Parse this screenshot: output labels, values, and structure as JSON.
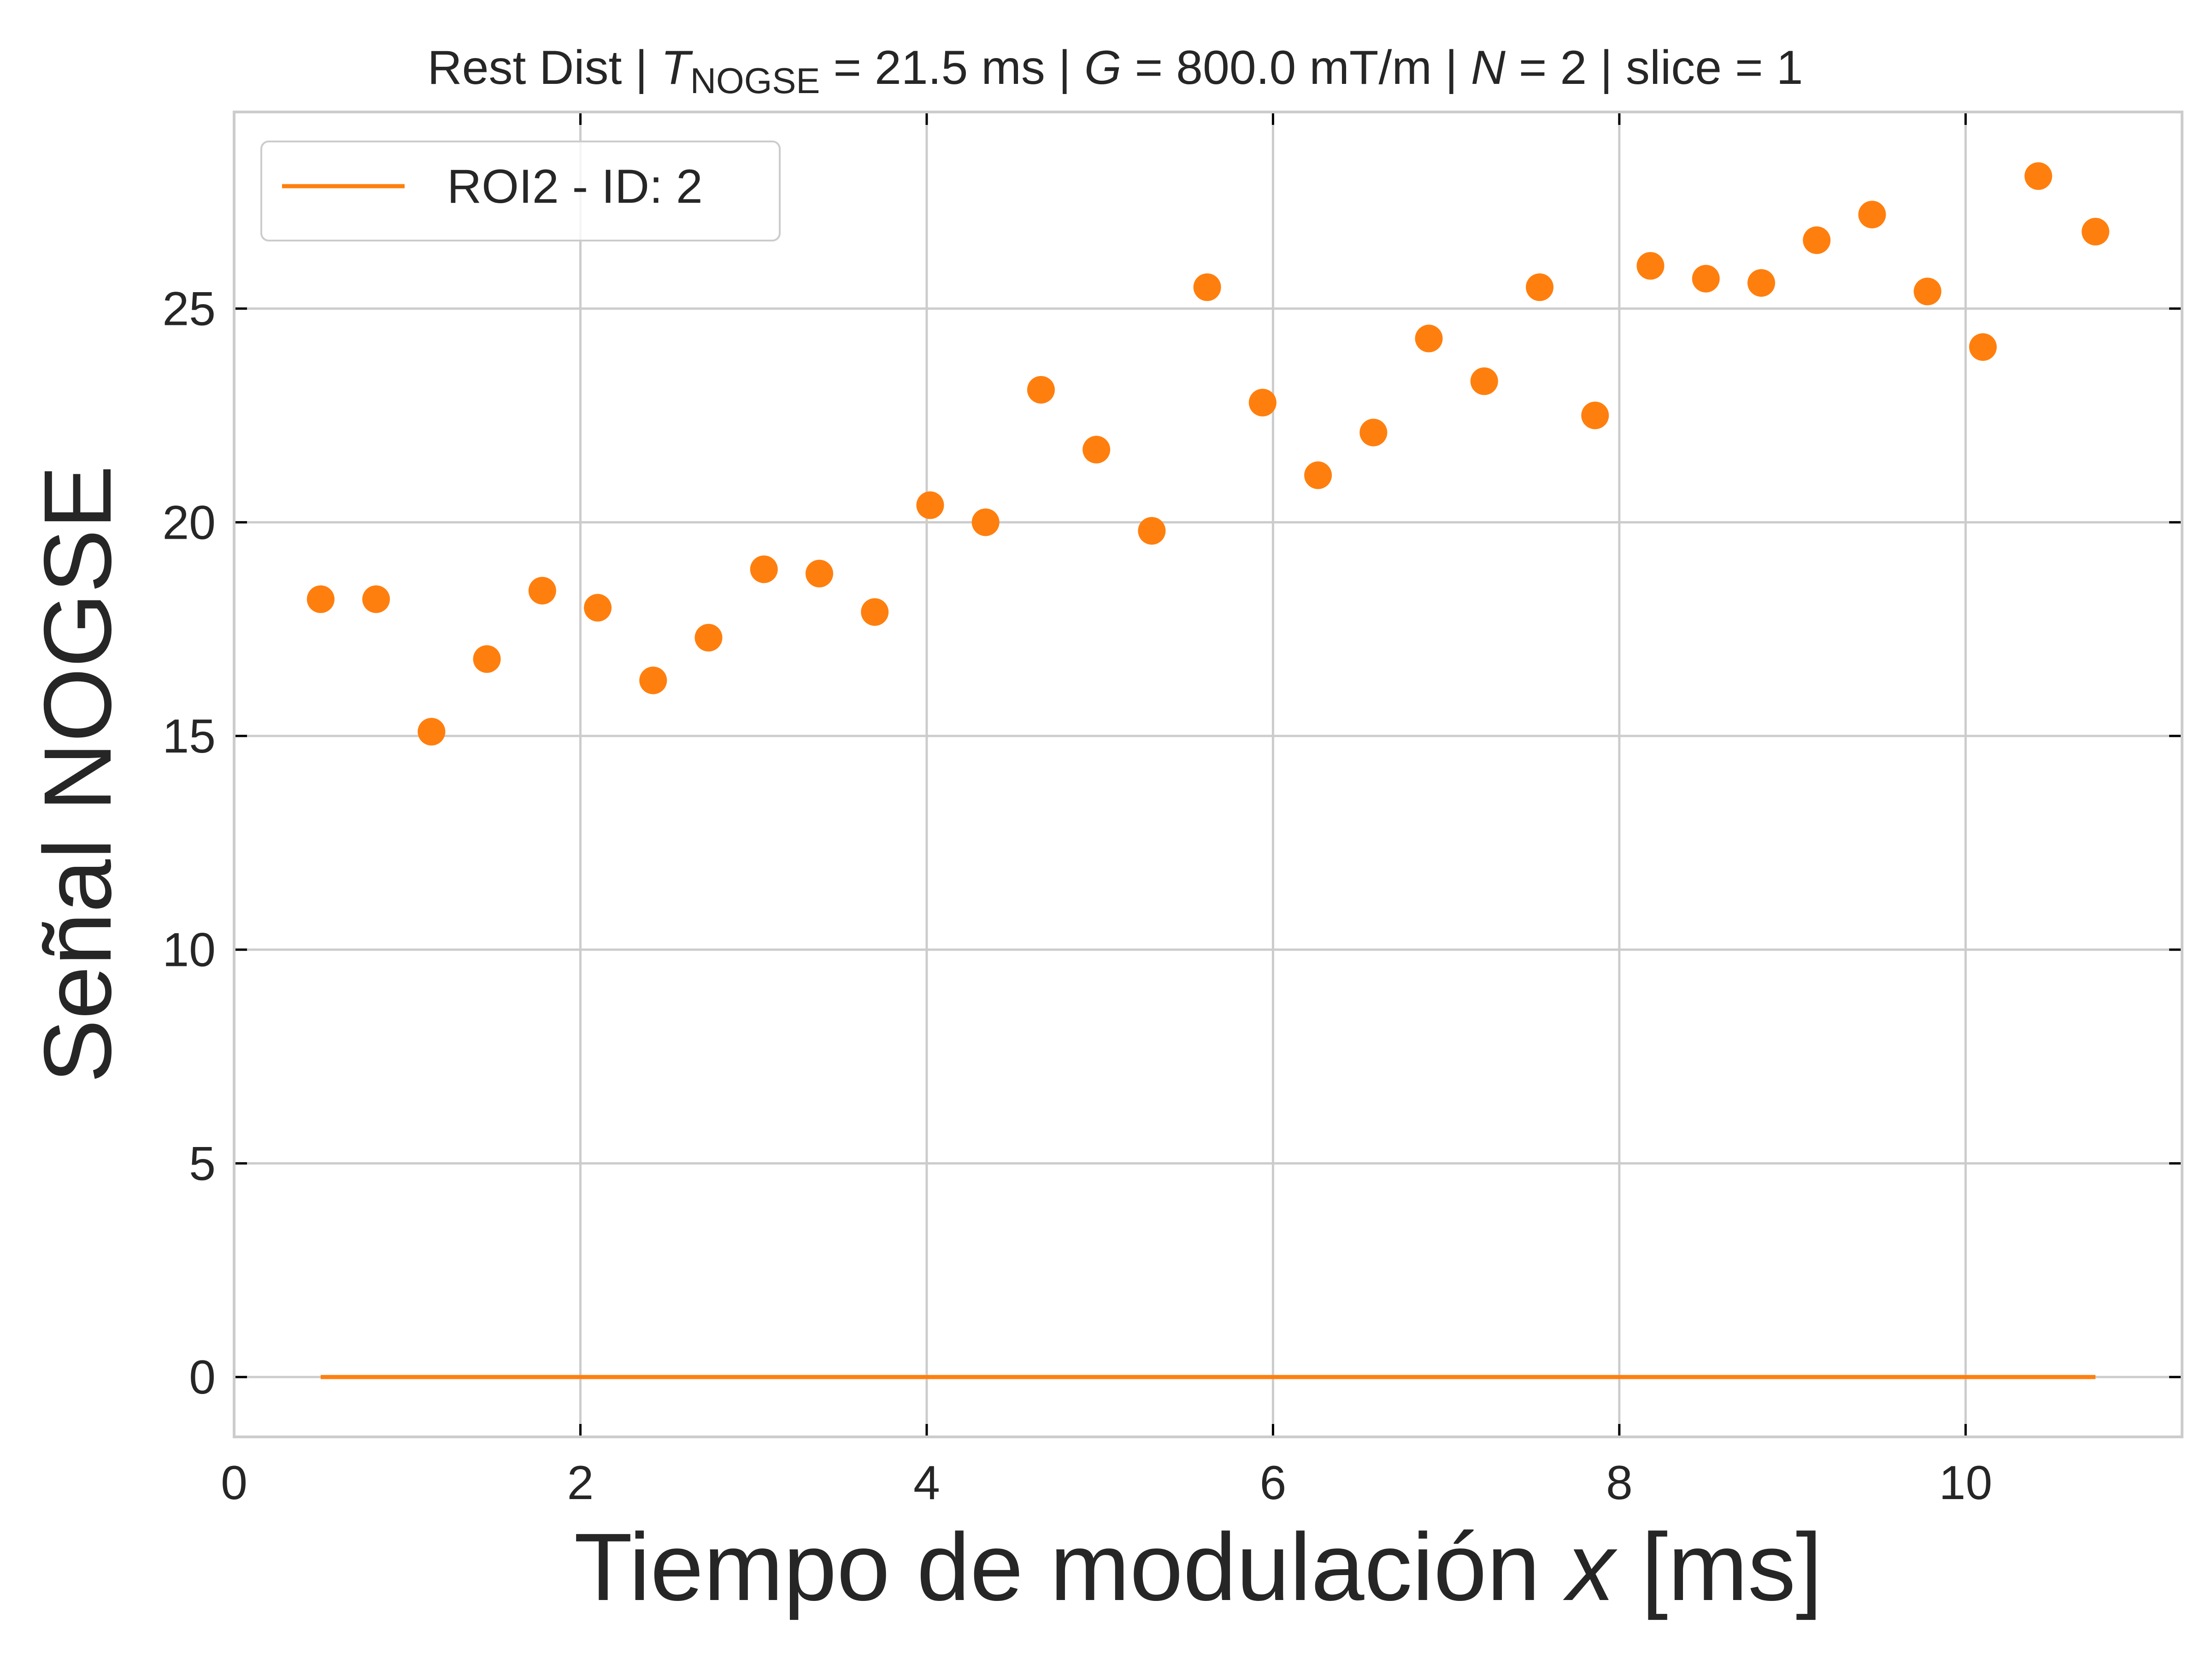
{
  "chart_data": {
    "type": "scatter",
    "title": {
      "prefix": "Rest Dist | ",
      "t_symbol": "T",
      "t_subscript": "NOGSE",
      "t_value": " = 21.5 ms | ",
      "g_symbol": "G",
      "g_value": " = 800.0 mT/m | ",
      "n_symbol": "N",
      "n_value": " = 2 | slice = 1"
    },
    "xlabel": {
      "text": "Tiempo de modulación ",
      "italic": "x",
      "unit": " [ms]"
    },
    "ylabel": "Señal NOGSE",
    "xlim": [
      0,
      11.25
    ],
    "ylim": [
      -1.4,
      29.6
    ],
    "x_ticks": [
      0,
      2,
      4,
      6,
      8,
      10
    ],
    "y_ticks": [
      0,
      5,
      10,
      15,
      20,
      25
    ],
    "grid": true,
    "legend_position": "top-left",
    "color": "#ff7f0e",
    "series": [
      {
        "name": "ROI2 - ID: 2",
        "kind": "line",
        "x": [
          0.5,
          10.75
        ],
        "y": [
          0,
          0
        ]
      },
      {
        "kind": "scatter",
        "x": [
          0.5,
          0.82,
          1.14,
          1.46,
          1.78,
          2.1,
          2.42,
          2.74,
          3.06,
          3.38,
          3.7,
          4.02,
          4.34,
          4.66,
          4.98,
          5.3,
          5.62,
          5.94,
          6.26,
          6.58,
          6.9,
          7.22,
          7.54,
          7.86,
          8.18,
          8.5,
          8.82,
          9.14,
          9.46,
          9.78,
          10.1,
          10.42,
          10.75
        ],
        "y": [
          18.2,
          18.2,
          15.1,
          16.8,
          18.4,
          18.0,
          16.3,
          17.3,
          18.9,
          18.8,
          17.9,
          20.4,
          20.0,
          23.1,
          21.7,
          19.8,
          25.5,
          22.8,
          21.1,
          22.1,
          24.3,
          23.3,
          25.5,
          22.5,
          26.0,
          25.7,
          25.6,
          26.6,
          27.2,
          25.4,
          24.1,
          28.1,
          26.8
        ]
      }
    ]
  }
}
